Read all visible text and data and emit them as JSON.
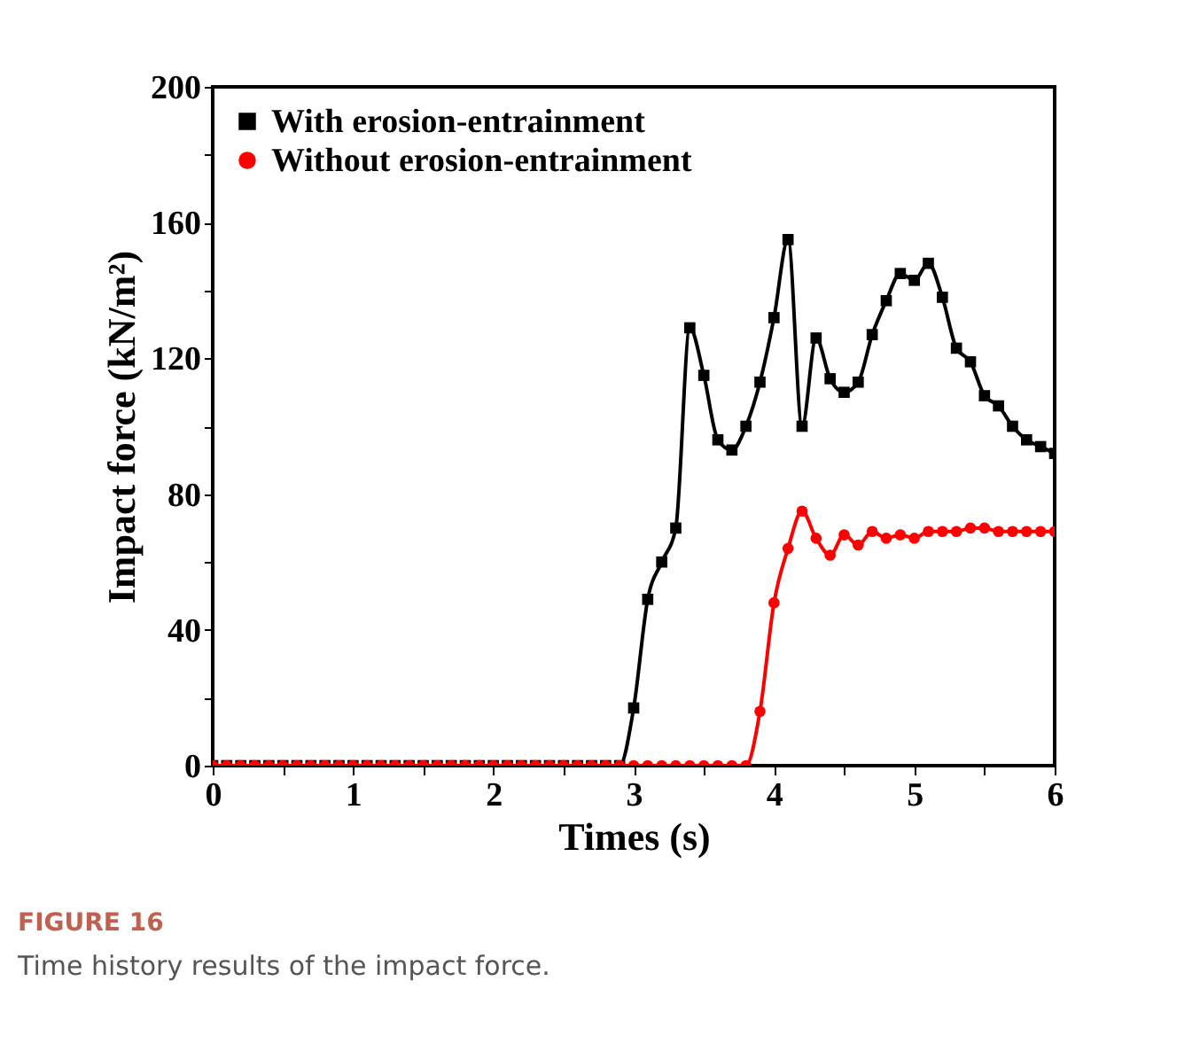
{
  "chart_data": {
    "type": "line",
    "xlabel": "Times (s)",
    "ylabel": "Impact force (kN/m²)",
    "x": [
      0,
      0.1,
      0.2,
      0.3,
      0.4,
      0.5,
      0.6,
      0.7,
      0.8,
      0.9,
      1,
      1.1,
      1.2,
      1.3,
      1.4,
      1.5,
      1.6,
      1.7,
      1.8,
      1.9,
      2,
      2.1,
      2.2,
      2.3,
      2.4,
      2.5,
      2.6,
      2.7,
      2.8,
      2.9,
      3,
      3.1,
      3.2,
      3.3,
      3.4,
      3.5,
      3.6,
      3.7,
      3.8,
      3.9,
      4,
      4.1,
      4.2,
      4.3,
      4.4,
      4.5,
      4.6,
      4.7,
      4.8,
      4.9,
      5,
      5.1,
      5.2,
      5.3,
      5.4,
      5.5,
      5.6,
      5.7,
      5.8,
      5.9,
      6
    ],
    "series": [
      {
        "name": "With erosion-entrainment",
        "color": "#000000",
        "marker": "square",
        "values": [
          0,
          0,
          0,
          0,
          0,
          0,
          0,
          0,
          0,
          0,
          0,
          0,
          0,
          0,
          0,
          0,
          0,
          0,
          0,
          0,
          0,
          0,
          0,
          0,
          0,
          0,
          0,
          0,
          0,
          0,
          17,
          49,
          60,
          70,
          129,
          115,
          96,
          93,
          100,
          113,
          132,
          155,
          100,
          126,
          114,
          110,
          113,
          127,
          137,
          145,
          143,
          148,
          138,
          123,
          119,
          109,
          106,
          100,
          96,
          94,
          92
        ]
      },
      {
        "name": "Without erosion-entrainment",
        "color": "#ff0000",
        "marker": "circle",
        "values": [
          0,
          0,
          0,
          0,
          0,
          0,
          0,
          0,
          0,
          0,
          0,
          0,
          0,
          0,
          0,
          0,
          0,
          0,
          0,
          0,
          0,
          0,
          0,
          0,
          0,
          0,
          0,
          0,
          0,
          0,
          0,
          0,
          0,
          0,
          0,
          0,
          0,
          0,
          0,
          16,
          48,
          64,
          75,
          67,
          62,
          68,
          65,
          69,
          67,
          68,
          67,
          69,
          69,
          69,
          70,
          70,
          69,
          69,
          69,
          69,
          69
        ]
      }
    ],
    "xlim": [
      0,
      6
    ],
    "xticks": [
      0,
      {
        "value": 0.5,
        "label": null
      },
      1,
      {
        "value": 1.5,
        "label": null
      },
      2,
      {
        "value": 2.5,
        "label": null
      },
      3,
      {
        "value": 3.5,
        "label": null
      },
      4,
      {
        "value": 4.5,
        "label": null
      },
      5,
      {
        "value": 5.5,
        "label": null
      },
      6
    ],
    "ylim": [
      0,
      200
    ],
    "yticks": [
      0,
      {
        "value": 20,
        "label": null
      },
      40,
      {
        "value": 60,
        "label": null
      },
      80,
      {
        "value": 100,
        "label": null
      },
      120,
      {
        "value": 140,
        "label": null
      },
      160,
      {
        "value": 180,
        "label": null
      },
      200
    ],
    "grid": false,
    "legend": "top left",
    "line_style": "solid",
    "annotations": [
      "FIGURE 16",
      "Time history results of the impact force."
    ]
  }
}
